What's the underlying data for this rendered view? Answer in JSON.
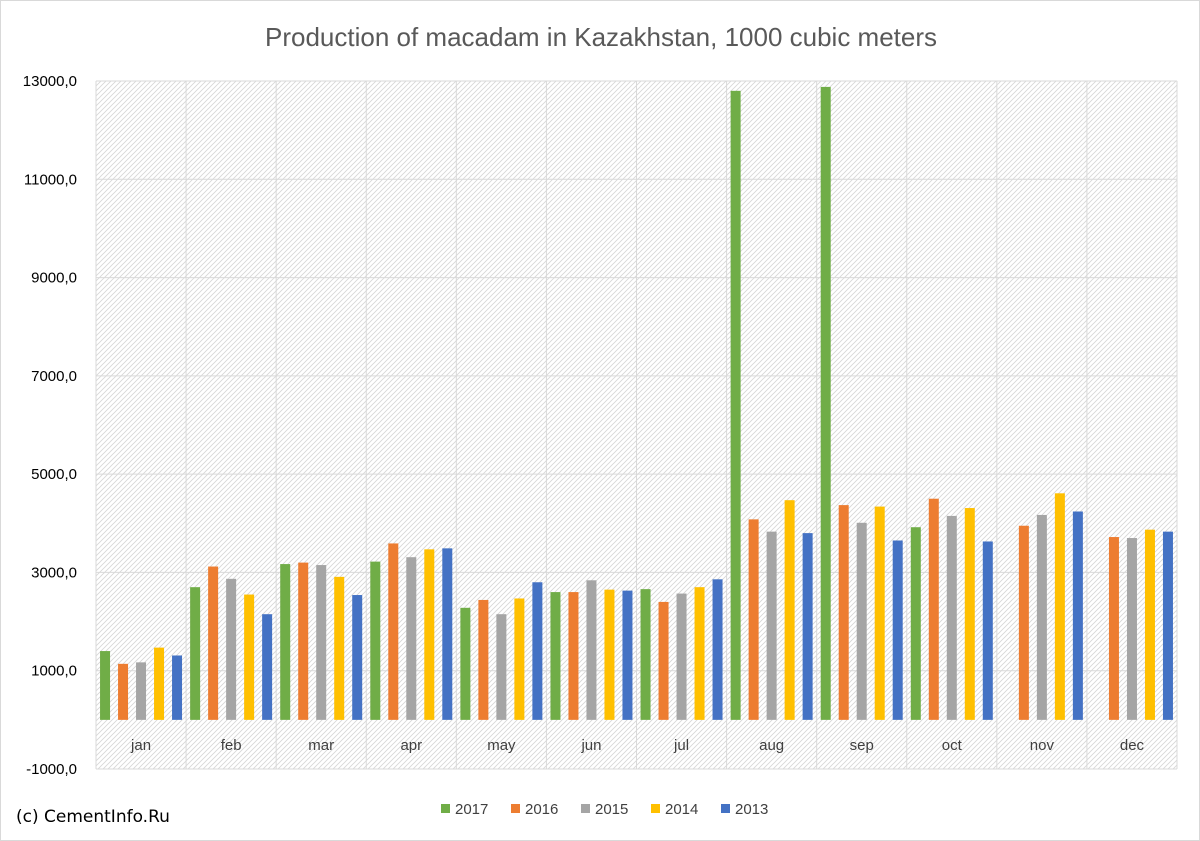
{
  "credit": "(c) CementInfo.Ru",
  "colors": {
    "2017": "#70ad47",
    "2016": "#ed7d31",
    "2015": "#a5a5a5",
    "2014": "#ffc000",
    "2013": "#4472c4"
  },
  "chart_data": {
    "type": "bar",
    "title": "Production of macadam in Kazakhstan, 1000 cubic meters",
    "xlabel": "",
    "ylabel": "",
    "categories": [
      "jan",
      "feb",
      "mar",
      "apr",
      "may",
      "jun",
      "jul",
      "aug",
      "sep",
      "oct",
      "nov",
      "dec"
    ],
    "ylim": [
      -1000,
      13000
    ],
    "yticks": [
      -1000,
      1000,
      3000,
      5000,
      7000,
      9000,
      11000,
      13000
    ],
    "ytick_labels": [
      "-1000,0",
      "1000,0",
      "3000,0",
      "5000,0",
      "7000,0",
      "9000,0",
      "11000,0",
      "13000,0"
    ],
    "grid": true,
    "legend_position": "bottom",
    "series": [
      {
        "name": "2017",
        "values": [
          1400,
          2700,
          3170,
          3220,
          2280,
          2600,
          2660,
          12800,
          12880,
          3920,
          null,
          null
        ]
      },
      {
        "name": "2016",
        "values": [
          1140,
          3120,
          3200,
          3590,
          2440,
          2600,
          2400,
          4080,
          4370,
          4500,
          3950,
          3720
        ]
      },
      {
        "name": "2015",
        "values": [
          1170,
          2870,
          3150,
          3310,
          2150,
          2840,
          2570,
          3830,
          4010,
          4150,
          4170,
          3700
        ]
      },
      {
        "name": "2014",
        "values": [
          1470,
          2550,
          2910,
          3470,
          2470,
          2650,
          2700,
          4470,
          4340,
          4310,
          4610,
          3870
        ]
      },
      {
        "name": "2013",
        "values": [
          1310,
          2150,
          2540,
          3490,
          2800,
          2630,
          2860,
          3800,
          3650,
          3630,
          4240,
          3830
        ]
      }
    ]
  }
}
